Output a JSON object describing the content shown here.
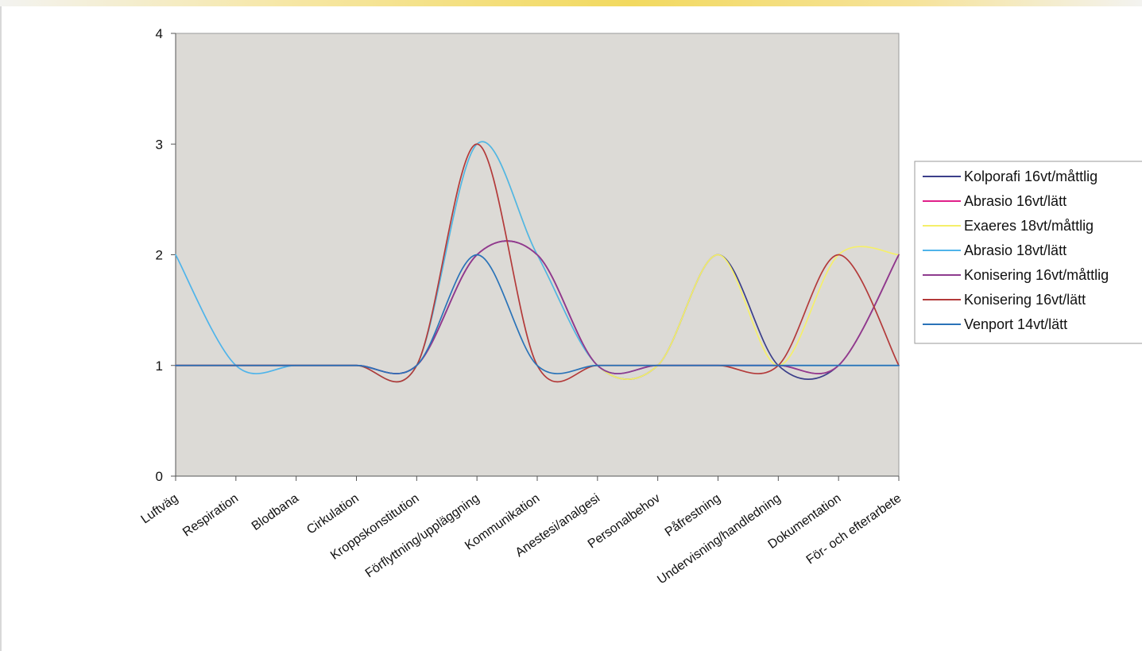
{
  "chart_data": {
    "type": "line",
    "title": "",
    "xlabel": "",
    "ylabel": "",
    "ylim": [
      0,
      4
    ],
    "yticks": [
      0,
      1,
      2,
      3,
      4
    ],
    "grid": false,
    "plot_background": "#dcdad6",
    "legend_position": "right",
    "categories": [
      "Luftväg",
      "Respiration",
      "Blodbana",
      "Cirkulation",
      "Kroppskonstitution",
      "Förflyttning/uppläggning",
      "Kommunikation",
      "Anestesi/analgesi",
      "Personalbehov",
      "Påfrestning",
      "Undervisning/handledning",
      "Dokumentation",
      "För- och efterarbete"
    ],
    "series": [
      {
        "name": "Kolporafi 16vt/måttlig",
        "color": "#3b3f8a",
        "values": [
          1,
          1,
          1,
          1,
          1,
          2,
          2,
          1,
          1,
          2,
          1,
          1,
          2
        ]
      },
      {
        "name": "Abrasio 16vt/lätt",
        "color": "#e0208a",
        "values": [
          1,
          1,
          1,
          1,
          1,
          2,
          2,
          1,
          1,
          1,
          1,
          1,
          2
        ]
      },
      {
        "name": "Exaeres 18vt/måttlig",
        "color": "#f5ef6a",
        "values": [
          1,
          1,
          1,
          1,
          1,
          3,
          2,
          1,
          1,
          2,
          1,
          2,
          2
        ]
      },
      {
        "name": "Abrasio 18vt/lätt",
        "color": "#4fb4ea",
        "values": [
          2,
          1,
          1,
          1,
          1,
          3,
          2,
          1,
          1,
          1,
          1,
          1,
          1
        ]
      },
      {
        "name": "Konisering 16vt/måttlig",
        "color": "#8e3c8e",
        "values": [
          1,
          1,
          1,
          1,
          1,
          2,
          2,
          1,
          1,
          1,
          1,
          1,
          2
        ]
      },
      {
        "name": "Konisering 16vt/lätt",
        "color": "#b33a3a",
        "values": [
          1,
          1,
          1,
          1,
          1,
          3,
          1,
          1,
          1,
          1,
          1,
          2,
          1
        ]
      },
      {
        "name": "Venport 14vt/lätt",
        "color": "#2a73b8",
        "values": [
          1,
          1,
          1,
          1,
          1,
          2,
          1,
          1,
          1,
          1,
          1,
          1,
          1
        ]
      }
    ]
  }
}
